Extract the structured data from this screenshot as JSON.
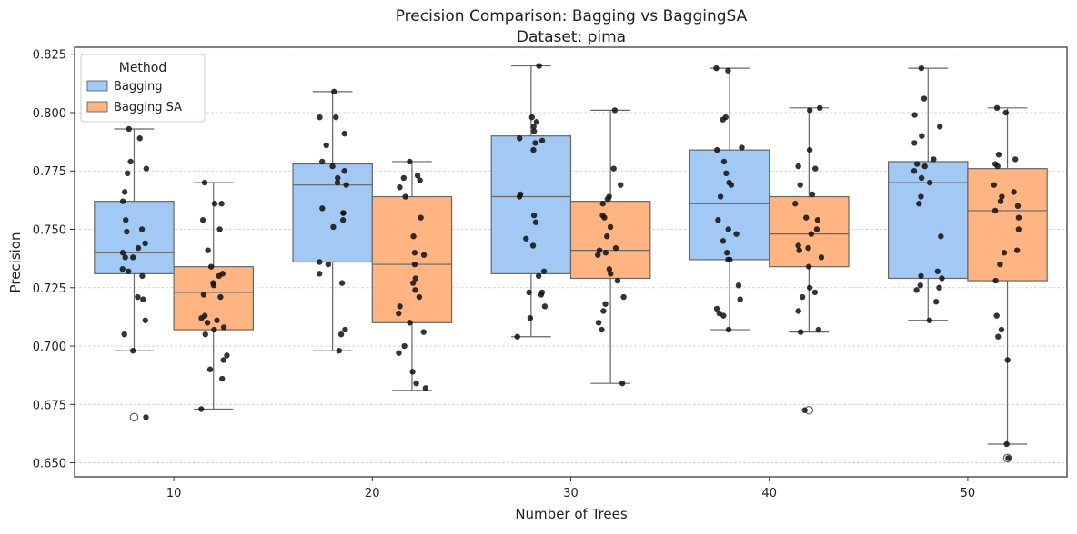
{
  "chart_data": {
    "type": "box",
    "title": "Precision Comparison: Bagging vs BaggingSA",
    "subtitle": "Dataset: pima",
    "xlabel": "Number of Trees",
    "ylabel": "Precision",
    "ylim": [
      0.644,
      0.828
    ],
    "yticks": [
      0.65,
      0.675,
      0.7,
      0.725,
      0.75,
      0.775,
      0.8,
      0.825
    ],
    "ytick_labels": [
      "0.650",
      "0.675",
      "0.700",
      "0.725",
      "0.750",
      "0.775",
      "0.800",
      "0.825"
    ],
    "categories": [
      "10",
      "20",
      "30",
      "40",
      "50"
    ],
    "grid": "horizontal dashed",
    "legend": {
      "title": "Method",
      "placement": "top-left",
      "entries": [
        "Bagging",
        "Bagging SA"
      ]
    },
    "series": [
      {
        "name": "Bagging",
        "color": "#a1c9f4",
        "boxes": [
          {
            "q1": 0.731,
            "median": 0.74,
            "q3": 0.762,
            "whisker_low": 0.698,
            "whisker_high": 0.793,
            "outliers": [
              0.6695
            ],
            "points": [
              0.793,
              0.789,
              0.779,
              0.774,
              0.776,
              0.766,
              0.762,
              0.754,
              0.75,
              0.749,
              0.744,
              0.742,
              0.74,
              0.738,
              0.738,
              0.733,
              0.732,
              0.73,
              0.721,
              0.72,
              0.711,
              0.705,
              0.698,
              0.6695
            ]
          },
          {
            "q1": 0.736,
            "median": 0.769,
            "q3": 0.778,
            "whisker_low": 0.698,
            "whisker_high": 0.809,
            "outliers": [],
            "points": [
              0.809,
              0.798,
              0.798,
              0.791,
              0.786,
              0.779,
              0.777,
              0.775,
              0.772,
              0.77,
              0.769,
              0.759,
              0.757,
              0.757,
              0.754,
              0.751,
              0.736,
              0.735,
              0.731,
              0.727,
              0.707,
              0.705,
              0.698
            ]
          },
          {
            "q1": 0.731,
            "median": 0.764,
            "q3": 0.79,
            "whisker_low": 0.704,
            "whisker_high": 0.82,
            "outliers": [],
            "points": [
              0.82,
              0.798,
              0.796,
              0.794,
              0.792,
              0.789,
              0.788,
              0.787,
              0.784,
              0.765,
              0.764,
              0.756,
              0.753,
              0.746,
              0.743,
              0.732,
              0.73,
              0.723,
              0.723,
              0.722,
              0.717,
              0.712,
              0.704
            ]
          },
          {
            "q1": 0.737,
            "median": 0.761,
            "q3": 0.784,
            "whisker_low": 0.707,
            "whisker_high": 0.819,
            "outliers": [],
            "points": [
              0.819,
              0.818,
              0.798,
              0.797,
              0.785,
              0.784,
              0.779,
              0.774,
              0.77,
              0.769,
              0.764,
              0.754,
              0.75,
              0.748,
              0.745,
              0.74,
              0.737,
              0.737,
              0.726,
              0.72,
              0.716,
              0.714,
              0.713,
              0.707
            ]
          },
          {
            "q1": 0.729,
            "median": 0.77,
            "q3": 0.779,
            "whisker_low": 0.711,
            "whisker_high": 0.819,
            "outliers": [],
            "points": [
              0.819,
              0.806,
              0.799,
              0.794,
              0.79,
              0.787,
              0.78,
              0.778,
              0.777,
              0.775,
              0.772,
              0.77,
              0.764,
              0.761,
              0.747,
              0.732,
              0.73,
              0.729,
              0.726,
              0.725,
              0.724,
              0.719,
              0.711
            ]
          }
        ]
      },
      {
        "name": "Bagging SA",
        "color": "#ffb482",
        "boxes": [
          {
            "q1": 0.707,
            "median": 0.723,
            "q3": 0.734,
            "whisker_low": 0.673,
            "whisker_high": 0.77,
            "outliers": [],
            "points": [
              0.77,
              0.761,
              0.761,
              0.754,
              0.75,
              0.741,
              0.734,
              0.731,
              0.73,
              0.727,
              0.726,
              0.722,
              0.721,
              0.713,
              0.712,
              0.711,
              0.71,
              0.708,
              0.707,
              0.705,
              0.696,
              0.694,
              0.69,
              0.686,
              0.673
            ]
          },
          {
            "q1": 0.71,
            "median": 0.735,
            "q3": 0.764,
            "whisker_low": 0.681,
            "whisker_high": 0.779,
            "outliers": [],
            "points": [
              0.779,
              0.773,
              0.772,
              0.771,
              0.768,
              0.764,
              0.755,
              0.747,
              0.74,
              0.739,
              0.735,
              0.729,
              0.727,
              0.724,
              0.721,
              0.717,
              0.714,
              0.71,
              0.706,
              0.7,
              0.697,
              0.689,
              0.684,
              0.682
            ]
          },
          {
            "q1": 0.729,
            "median": 0.741,
            "q3": 0.762,
            "whisker_low": 0.684,
            "whisker_high": 0.801,
            "outliers": [],
            "points": [
              0.801,
              0.776,
              0.769,
              0.764,
              0.763,
              0.761,
              0.756,
              0.755,
              0.751,
              0.747,
              0.742,
              0.741,
              0.74,
              0.739,
              0.733,
              0.731,
              0.728,
              0.721,
              0.718,
              0.715,
              0.71,
              0.707,
              0.684
            ]
          },
          {
            "q1": 0.734,
            "median": 0.748,
            "q3": 0.764,
            "whisker_low": 0.706,
            "whisker_high": 0.802,
            "outliers": [
              0.6725
            ],
            "points": [
              0.802,
              0.801,
              0.784,
              0.777,
              0.776,
              0.769,
              0.765,
              0.761,
              0.755,
              0.754,
              0.75,
              0.748,
              0.743,
              0.742,
              0.741,
              0.738,
              0.734,
              0.725,
              0.723,
              0.721,
              0.715,
              0.707,
              0.706,
              0.6725
            ]
          },
          {
            "q1": 0.728,
            "median": 0.758,
            "q3": 0.776,
            "whisker_low": 0.658,
            "whisker_high": 0.802,
            "outliers": [
              0.652
            ],
            "points": [
              0.802,
              0.8,
              0.782,
              0.78,
              0.778,
              0.777,
              0.769,
              0.766,
              0.764,
              0.762,
              0.76,
              0.758,
              0.755,
              0.75,
              0.741,
              0.74,
              0.735,
              0.728,
              0.713,
              0.707,
              0.704,
              0.694,
              0.658,
              0.652
            ]
          }
        ]
      }
    ]
  }
}
